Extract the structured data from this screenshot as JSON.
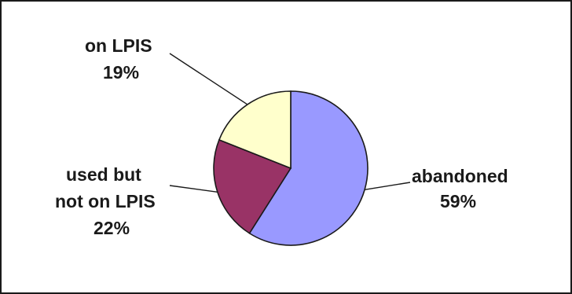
{
  "chart_data": {
    "type": "pie",
    "title": "",
    "slices": [
      {
        "label": "abandoned",
        "value": 59,
        "value_text": "59%",
        "color": "#9999ff"
      },
      {
        "label": "used but not on LPIS",
        "value": 22,
        "value_text": "22%",
        "color": "#993366"
      },
      {
        "label": "on LPIS",
        "value": 19,
        "value_text": "19%",
        "color": "#ffffcc"
      }
    ],
    "legend": "none",
    "data_labels": "outside with leader lines"
  }
}
